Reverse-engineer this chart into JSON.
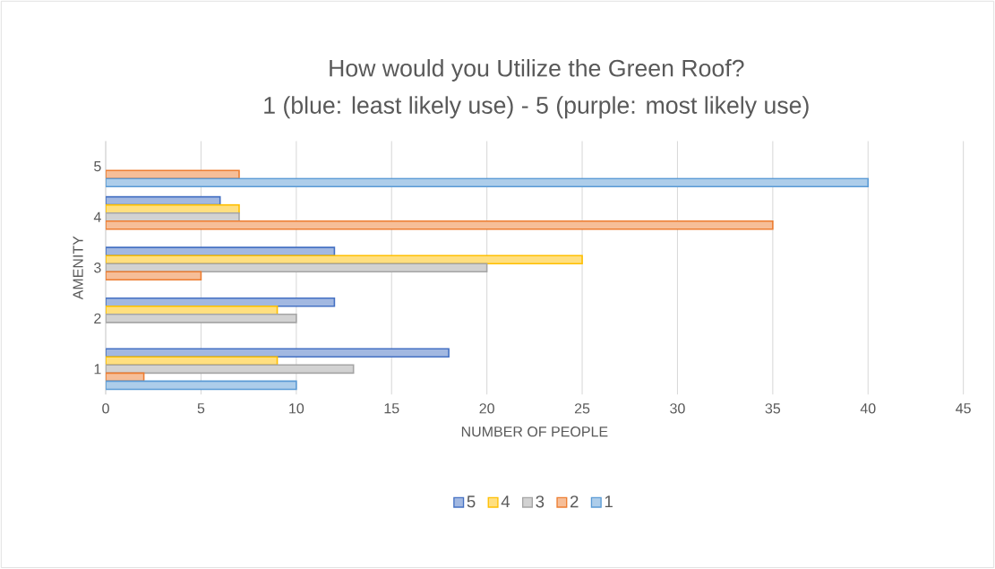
{
  "chart_data": {
    "type": "bar",
    "orientation": "horizontal",
    "title": "How would you Utilize the Green Roof?",
    "subtitle": "1 (blue: least likely use) - 5 (purple: most likely use)",
    "xlabel": "NUMBER OF PEOPLE",
    "ylabel": "AMENITY",
    "categories": [
      "5",
      "4",
      "3",
      "2",
      "1"
    ],
    "series": [
      {
        "name": "5",
        "color": "#a2b8e1",
        "values": [
          null,
          6,
          12,
          12,
          18
        ]
      },
      {
        "name": "4",
        "color": "#ffdf80",
        "values": [
          null,
          7,
          25,
          9,
          9
        ]
      },
      {
        "name": "3",
        "color": "#d2d2d2",
        "values": [
          null,
          7,
          20,
          10,
          13
        ]
      },
      {
        "name": "2",
        "color": "#f6be98",
        "values": [
          7,
          35,
          5,
          null,
          2
        ]
      },
      {
        "name": "1",
        "color": "#adcdea",
        "values": [
          40,
          null,
          null,
          null,
          10
        ]
      }
    ],
    "xlim": [
      0,
      45
    ],
    "xticks": [
      0,
      5,
      10,
      15,
      20,
      25,
      30,
      35,
      40,
      45
    ],
    "grid": "x",
    "legend": "bottom"
  }
}
